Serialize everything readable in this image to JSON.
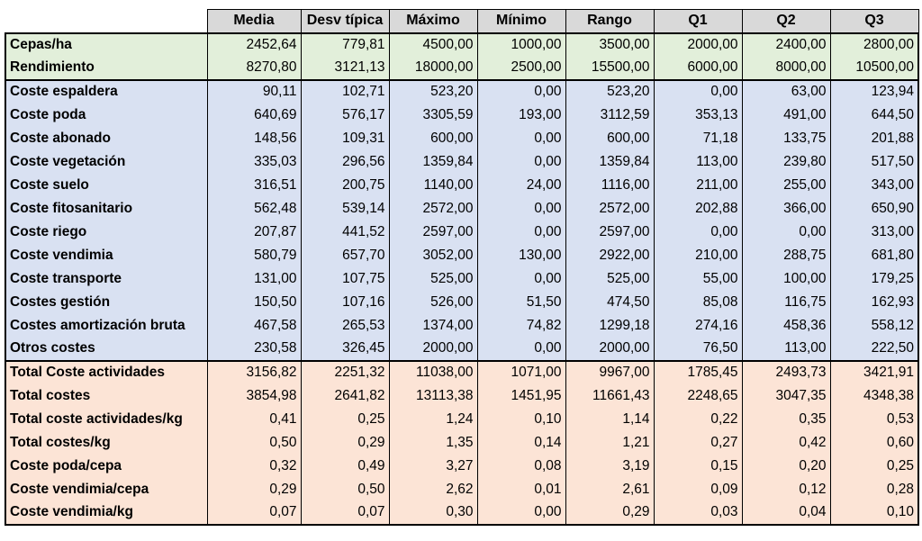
{
  "headers": [
    "Media",
    "Desv típica",
    "Máximo",
    "Mínimo",
    "Rango",
    "Q1",
    "Q2",
    "Q3"
  ],
  "colors": {
    "green": "#e2efda",
    "blue": "#d9e1f2",
    "red": "#fce4d6",
    "header": "#d9d9d9"
  },
  "groups": [
    {
      "color": "green",
      "rows": [
        {
          "label": "Cepas/ha",
          "values": [
            "2452,64",
            "779,81",
            "4500,00",
            "1000,00",
            "3500,00",
            "2000,00",
            "2400,00",
            "2800,00"
          ]
        },
        {
          "label": "Rendimiento",
          "values": [
            "8270,80",
            "3121,13",
            "18000,00",
            "2500,00",
            "15500,00",
            "6000,00",
            "8000,00",
            "10500,00"
          ]
        }
      ]
    },
    {
      "color": "blue",
      "rows": [
        {
          "label": "Coste espaldera",
          "values": [
            "90,11",
            "102,71",
            "523,20",
            "0,00",
            "523,20",
            "0,00",
            "63,00",
            "123,94"
          ]
        },
        {
          "label": "Coste poda",
          "values": [
            "640,69",
            "576,17",
            "3305,59",
            "193,00",
            "3112,59",
            "353,13",
            "491,00",
            "644,50"
          ]
        },
        {
          "label": "Coste abonado",
          "values": [
            "148,56",
            "109,31",
            "600,00",
            "0,00",
            "600,00",
            "71,18",
            "133,75",
            "201,88"
          ]
        },
        {
          "label": "Coste vegetación",
          "values": [
            "335,03",
            "296,56",
            "1359,84",
            "0,00",
            "1359,84",
            "113,00",
            "239,80",
            "517,50"
          ]
        },
        {
          "label": "Coste suelo",
          "values": [
            "316,51",
            "200,75",
            "1140,00",
            "24,00",
            "1116,00",
            "211,00",
            "255,00",
            "343,00"
          ]
        },
        {
          "label": "Coste fitosanitario",
          "values": [
            "562,48",
            "539,14",
            "2572,00",
            "0,00",
            "2572,00",
            "202,88",
            "366,00",
            "650,90"
          ]
        },
        {
          "label": "Coste riego",
          "values": [
            "207,87",
            "441,52",
            "2597,00",
            "0,00",
            "2597,00",
            "0,00",
            "0,00",
            "313,00"
          ]
        },
        {
          "label": "Coste vendimia",
          "values": [
            "580,79",
            "657,70",
            "3052,00",
            "130,00",
            "2922,00",
            "210,00",
            "288,75",
            "681,80"
          ]
        },
        {
          "label": "Coste transporte",
          "values": [
            "131,00",
            "107,75",
            "525,00",
            "0,00",
            "525,00",
            "55,00",
            "100,00",
            "179,25"
          ]
        },
        {
          "label": "Costes gestión",
          "values": [
            "150,50",
            "107,16",
            "526,00",
            "51,50",
            "474,50",
            "85,08",
            "116,75",
            "162,93"
          ]
        },
        {
          "label": "Costes amortización bruta",
          "values": [
            "467,58",
            "265,53",
            "1374,00",
            "74,82",
            "1299,18",
            "274,16",
            "458,36",
            "558,12"
          ]
        },
        {
          "label": "Otros costes",
          "values": [
            "230,58",
            "326,45",
            "2000,00",
            "0,00",
            "2000,00",
            "76,50",
            "113,00",
            "222,50"
          ]
        }
      ]
    },
    {
      "color": "red",
      "rows": [
        {
          "label": "Total Coste actividades",
          "values": [
            "3156,82",
            "2251,32",
            "11038,00",
            "1071,00",
            "9967,00",
            "1785,45",
            "2493,73",
            "3421,91"
          ]
        },
        {
          "label": "Total costes",
          "values": [
            "3854,98",
            "2641,82",
            "13113,38",
            "1451,95",
            "11661,43",
            "2248,65",
            "3047,35",
            "4348,38"
          ]
        },
        {
          "label": "Total coste actividades/kg",
          "values": [
            "0,41",
            "0,25",
            "1,24",
            "0,10",
            "1,14",
            "0,22",
            "0,35",
            "0,53"
          ]
        },
        {
          "label": "Total costes/kg",
          "values": [
            "0,50",
            "0,29",
            "1,35",
            "0,14",
            "1,21",
            "0,27",
            "0,42",
            "0,60"
          ]
        },
        {
          "label": "Coste poda/cepa",
          "values": [
            "0,32",
            "0,49",
            "3,27",
            "0,08",
            "3,19",
            "0,15",
            "0,20",
            "0,25"
          ]
        },
        {
          "label": "Coste vendimia/cepa",
          "values": [
            "0,29",
            "0,50",
            "2,62",
            "0,01",
            "2,61",
            "0,09",
            "0,12",
            "0,28"
          ]
        },
        {
          "label": "Coste vendimia/kg",
          "values": [
            "0,07",
            "0,07",
            "0,30",
            "0,00",
            "0,29",
            "0,03",
            "0,04",
            "0,10"
          ]
        }
      ]
    }
  ]
}
